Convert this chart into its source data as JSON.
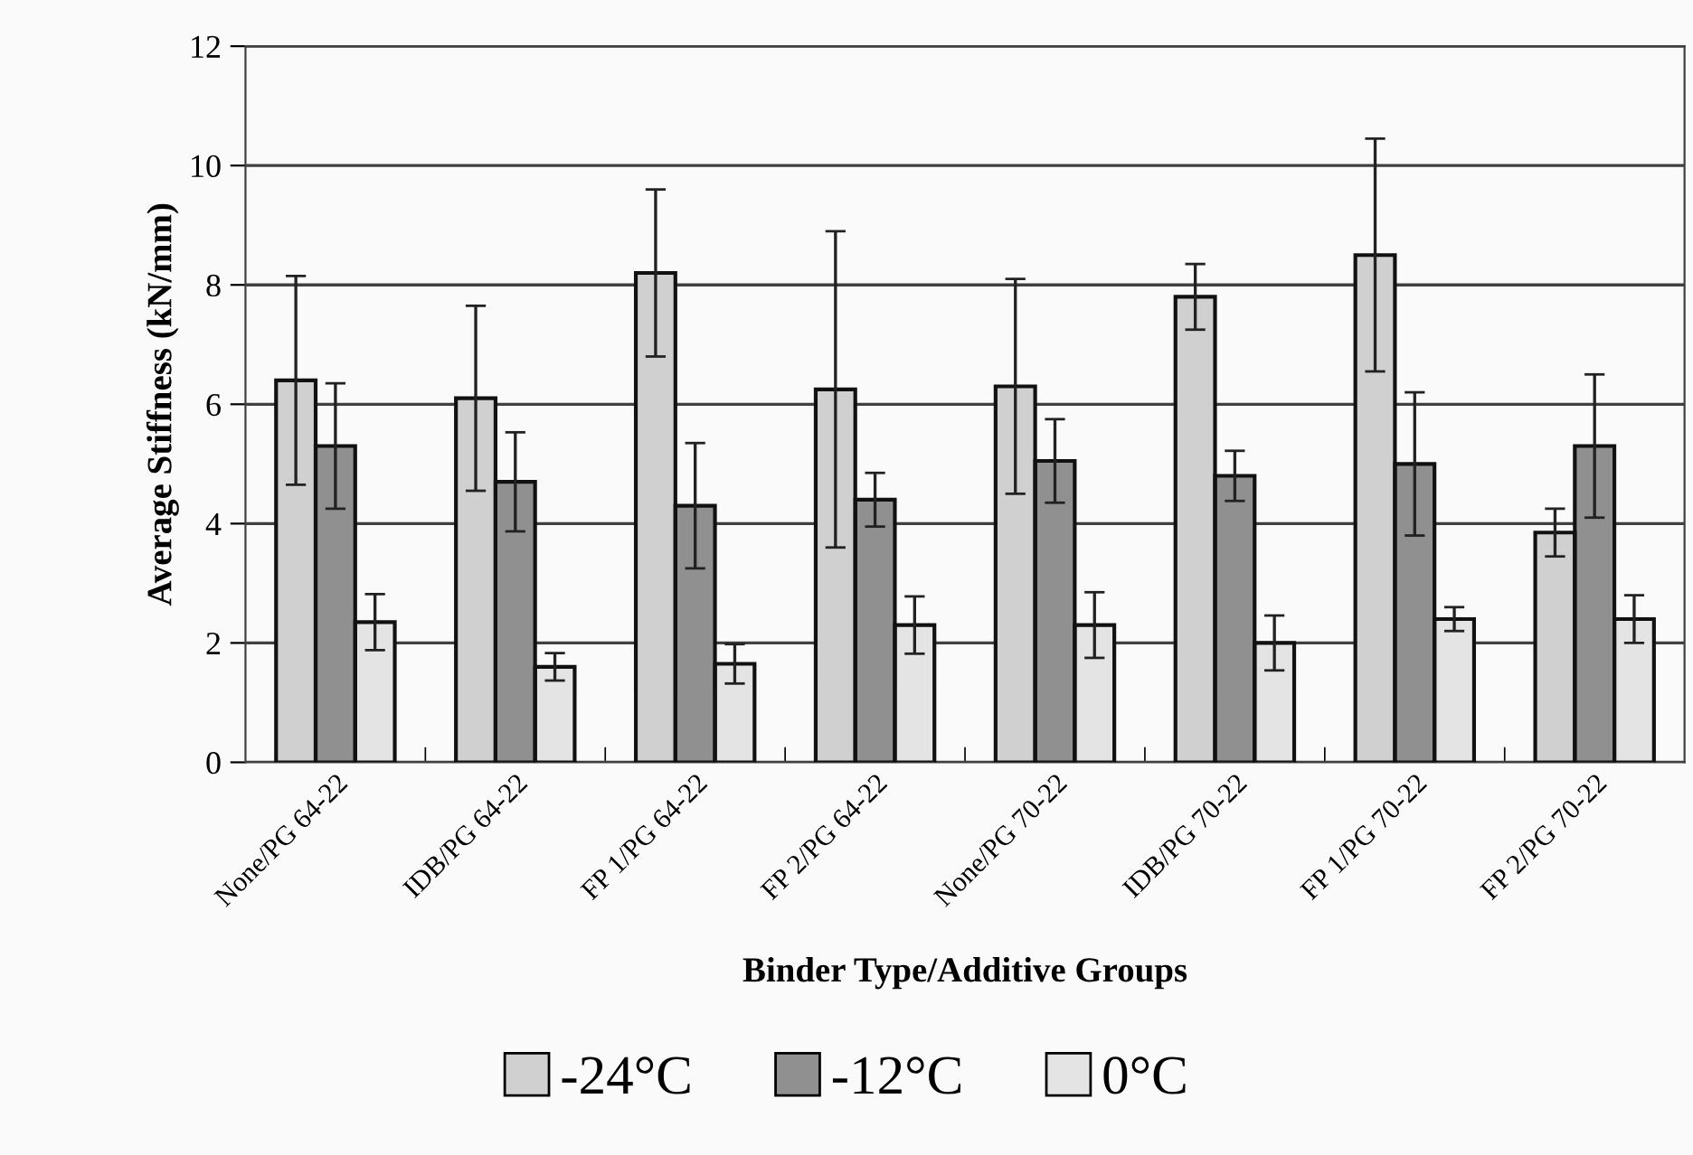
{
  "chart_data": {
    "type": "bar",
    "xlabel": "Binder Type/Additive Groups",
    "ylabel": "Average Stiffness (kN/mm)",
    "categories": [
      "None/PG 64-22",
      "IDB/PG 64-22",
      "FP 1/PG 64-22",
      "FP 2/PG 64-22",
      "None/PG 70-22",
      "IDB/PG 70-22",
      "FP 1/PG 70-22",
      "FP 2/PG 70-22"
    ],
    "series": [
      {
        "name": "-24°C",
        "color": "#d0d0d0",
        "values": [
          6.4,
          6.1,
          8.2,
          6.25,
          6.3,
          7.8,
          8.5,
          3.85
        ],
        "errors": [
          1.75,
          1.55,
          1.4,
          2.65,
          1.8,
          0.55,
          1.95,
          0.4
        ]
      },
      {
        "name": "-12°C",
        "color": "#909090",
        "values": [
          5.3,
          4.7,
          4.3,
          4.4,
          5.05,
          4.8,
          5.0,
          5.3
        ],
        "errors": [
          1.05,
          0.83,
          1.05,
          0.45,
          0.7,
          0.42,
          1.2,
          1.2
        ]
      },
      {
        "name": "0°C",
        "color": "#e4e4e4",
        "values": [
          2.35,
          1.6,
          1.65,
          2.3,
          2.3,
          2.0,
          2.4,
          2.4
        ],
        "errors": [
          0.47,
          0.23,
          0.33,
          0.48,
          0.55,
          0.46,
          0.2,
          0.4
        ]
      }
    ],
    "ylim": [
      0,
      12
    ],
    "yticks": [
      0,
      2,
      4,
      6,
      8,
      10,
      12
    ],
    "grid": "y",
    "legend": "bottom"
  }
}
